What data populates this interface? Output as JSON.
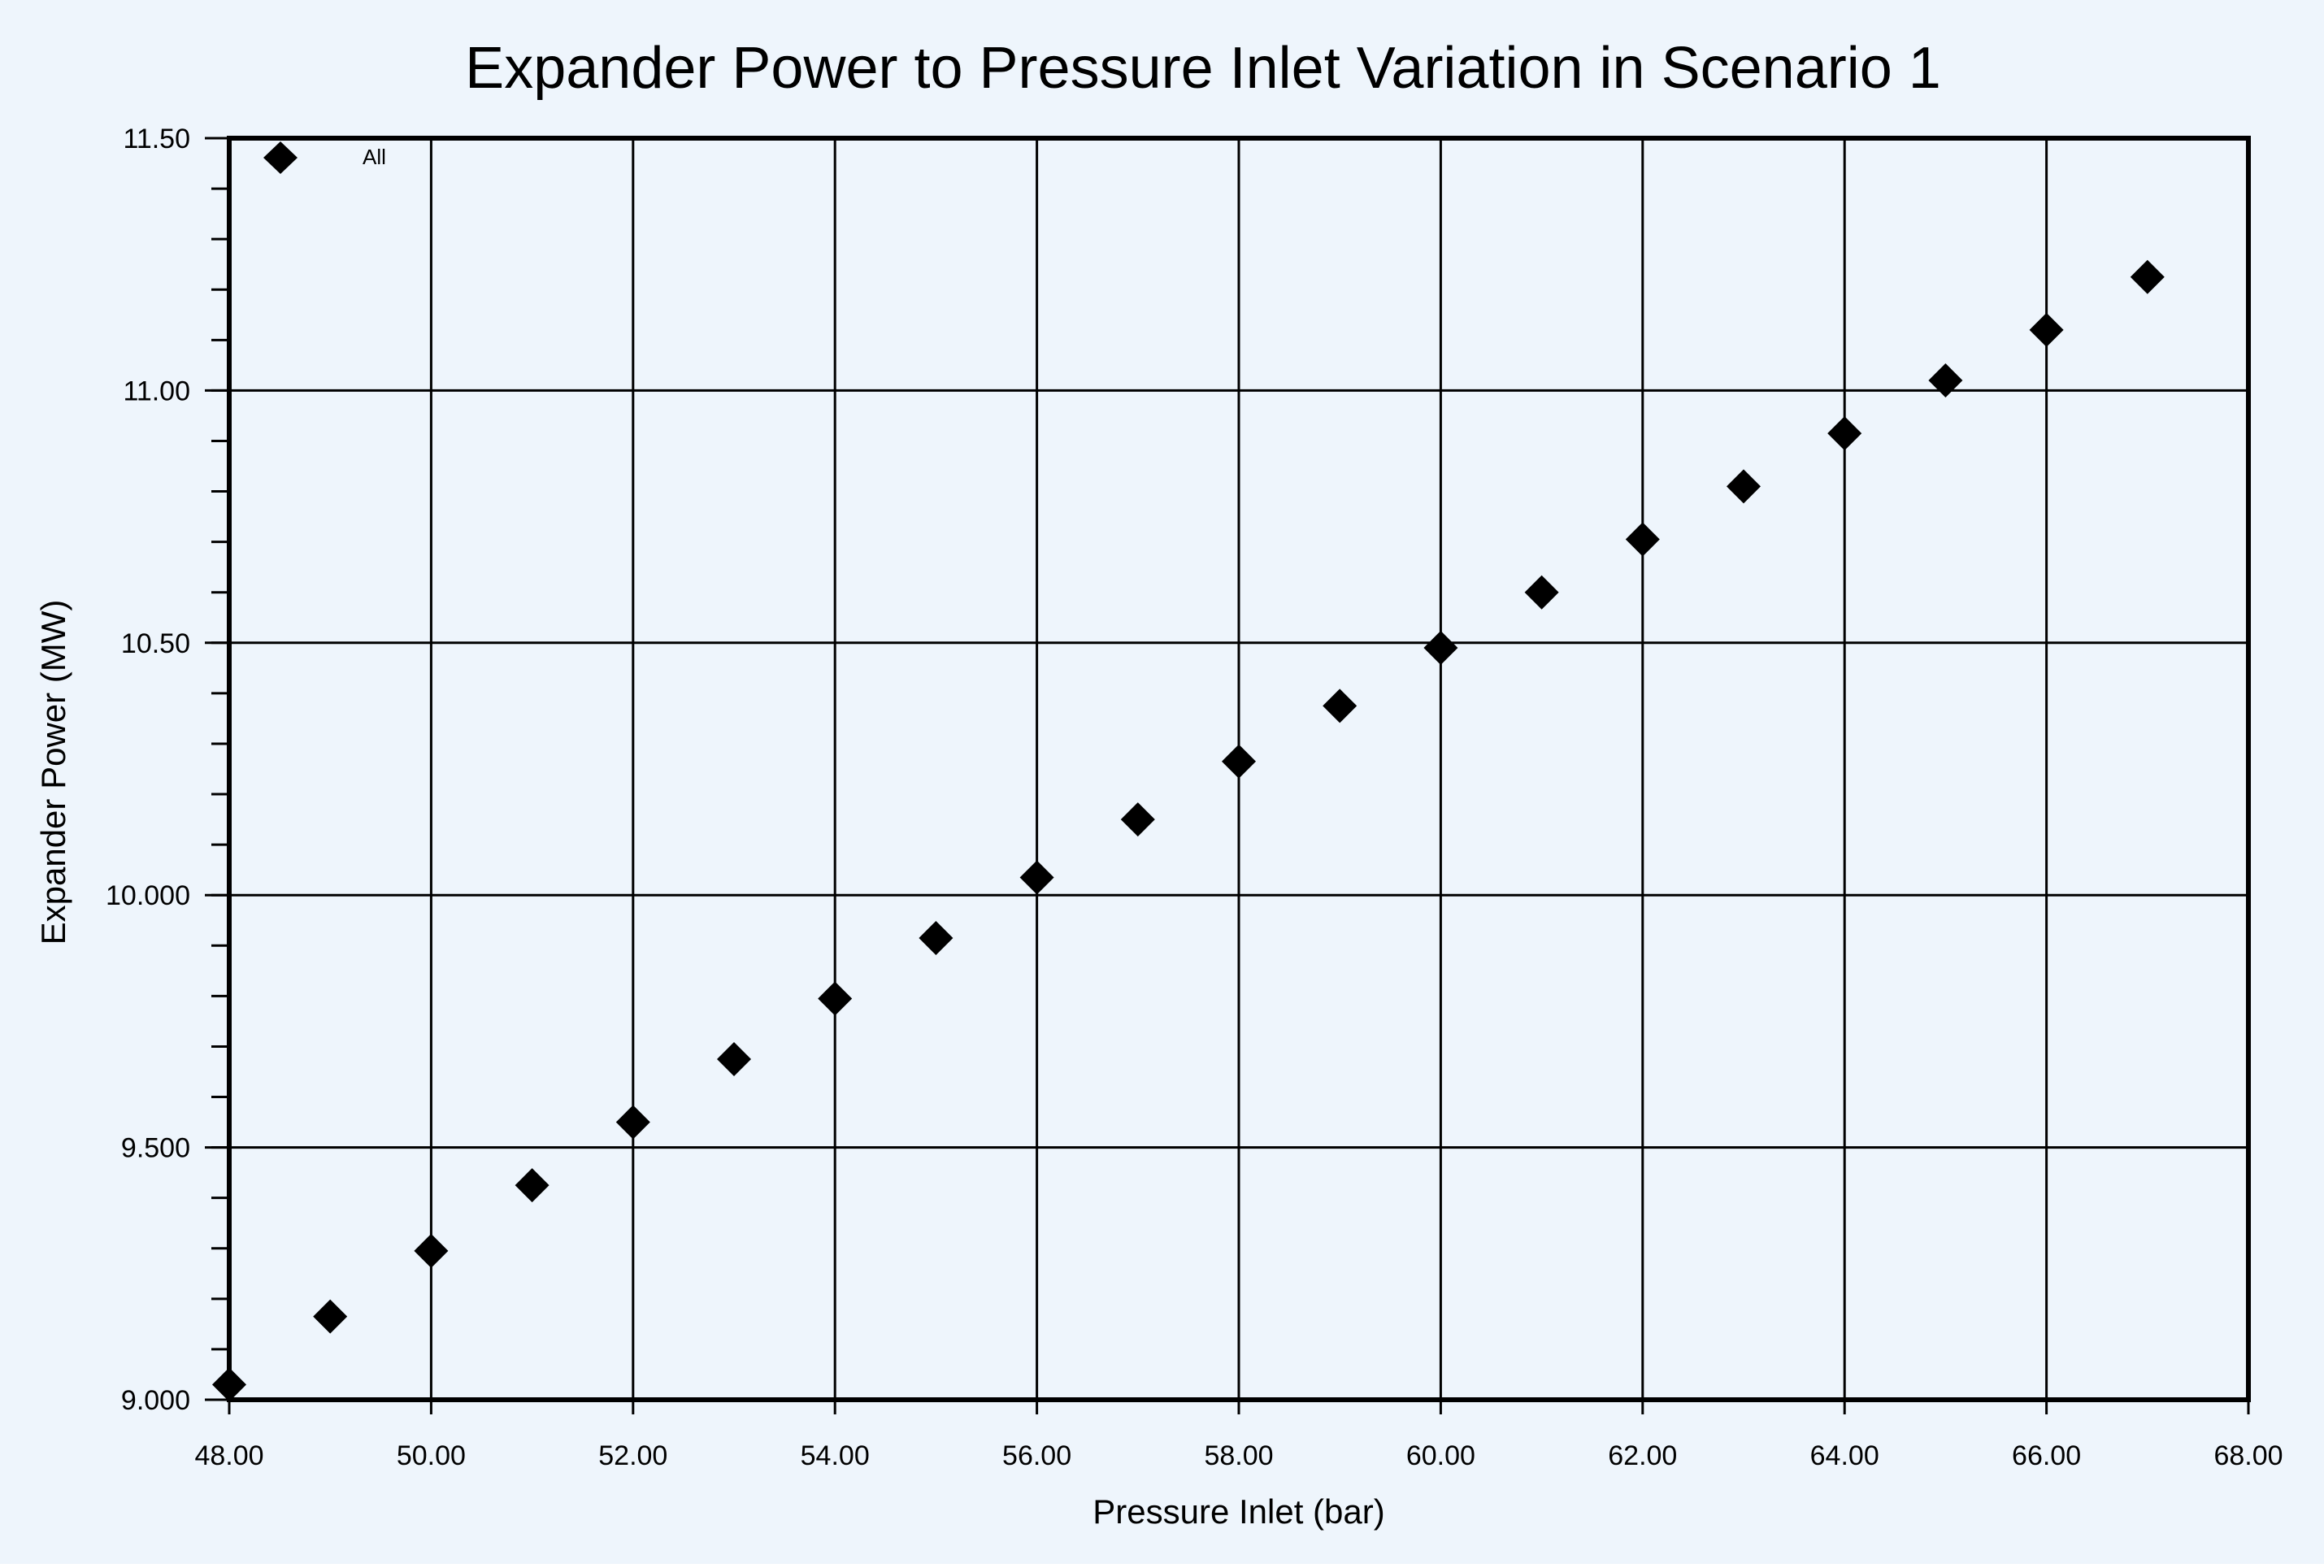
{
  "chart_data": {
    "type": "scatter",
    "title": "Expander Power to Pressure Inlet Variation in Scenario 1",
    "xlabel": "Pressure Inlet (bar)",
    "ylabel": "Expander Power (MW)",
    "xlim": [
      48,
      68
    ],
    "ylim": [
      9.0,
      11.5
    ],
    "x_ticks": [
      48,
      50,
      52,
      54,
      56,
      58,
      60,
      62,
      64,
      66,
      68
    ],
    "x_tick_labels": [
      "48.00",
      "50.00",
      "52.00",
      "54.00",
      "56.00",
      "58.00",
      "60.00",
      "62.00",
      "64.00",
      "66.00",
      "68.00"
    ],
    "y_ticks": [
      9.0,
      9.5,
      10.0,
      10.5,
      11.0,
      11.5
    ],
    "y_tick_labels": [
      "9.000",
      "9.500",
      "10.000",
      "10.50",
      "11.00",
      "11.50"
    ],
    "grid": true,
    "legend": {
      "position": "top-left",
      "entries": [
        "All"
      ]
    },
    "series": [
      {
        "name": "All",
        "marker": "diamond",
        "color": "#000000",
        "x": [
          48,
          49,
          50,
          51,
          52,
          53,
          54,
          55,
          56,
          57,
          58,
          59,
          60,
          61,
          62,
          63,
          64,
          65,
          66,
          67
        ],
        "y": [
          9.03,
          9.165,
          9.295,
          9.425,
          9.55,
          9.675,
          9.795,
          9.915,
          10.035,
          10.15,
          10.265,
          10.375,
          10.49,
          10.6,
          10.705,
          10.81,
          10.915,
          11.02,
          11.12,
          11.225
        ]
      }
    ],
    "colors": {
      "background": "#eef5fc",
      "plot_frame": "#000000",
      "grid": "#000000",
      "text": "#000000"
    }
  }
}
